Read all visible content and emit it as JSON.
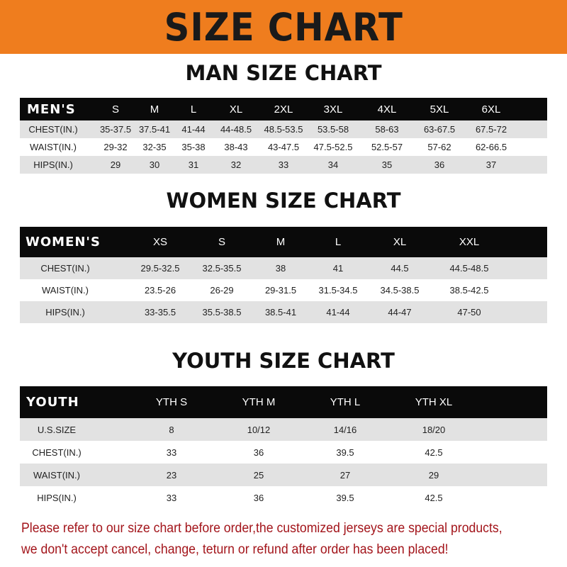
{
  "banner": {
    "title": "SIZE CHART",
    "color": "#ef7d1e"
  },
  "men": {
    "title": "MAN SIZE CHART",
    "headers": [
      "MEN'S",
      "S",
      "M",
      "L",
      "XL",
      "2XL",
      "3XL",
      "4XL",
      "5XL",
      "6XL"
    ],
    "rows": [
      [
        "CHEST(IN.)",
        "35-37.5",
        "37.5-41",
        "41-44",
        "44-48.5",
        "48.5-53.5",
        "53.5-58",
        "58-63",
        "63-67.5",
        "67.5-72"
      ],
      [
        "WAIST(IN.)",
        "29-32",
        "32-35",
        "35-38",
        "38-43",
        "43-47.5",
        "47.5-52.5",
        "52.5-57",
        "57-62",
        "62-66.5"
      ],
      [
        "HIPS(IN.)",
        "29",
        "30",
        "31",
        "32",
        "33",
        "34",
        "35",
        "36",
        "37"
      ]
    ]
  },
  "women": {
    "title": "WOMEN SIZE CHART",
    "headers": [
      "WOMEN'S",
      "XS",
      "S",
      "M",
      "L",
      "XL",
      "XXL"
    ],
    "rows": [
      [
        "CHEST(IN.)",
        "29.5-32.5",
        "32.5-35.5",
        "38",
        "41",
        "44.5",
        "44.5-48.5"
      ],
      [
        "WAIST(IN.)",
        "23.5-26",
        "26-29",
        "29-31.5",
        "31.5-34.5",
        "34.5-38.5",
        "38.5-42.5"
      ],
      [
        "HIPS(IN.)",
        "33-35.5",
        "35.5-38.5",
        "38.5-41",
        "41-44",
        "44-47",
        "47-50"
      ]
    ]
  },
  "youth": {
    "title": "YOUTH SIZE CHART",
    "headers": [
      "YOUTH",
      "YTH S",
      "YTH M",
      "YTH L",
      "YTH XL"
    ],
    "rows": [
      [
        "U.S.SIZE",
        "8",
        "10/12",
        "14/16",
        "18/20"
      ],
      [
        "CHEST(IN.)",
        "33",
        "36",
        "39.5",
        "42.5"
      ],
      [
        "WAIST(IN.)",
        "23",
        "25",
        "27",
        "29"
      ],
      [
        "HIPS(IN.)",
        "33",
        "36",
        "39.5",
        "42.5"
      ]
    ]
  },
  "notice": {
    "line1": "Please refer to our size chart before order,the customized jerseys are special products,",
    "line2": "we don't accept cancel, change, teturn or refund after order has been placed!",
    "color": "#a3151b"
  }
}
